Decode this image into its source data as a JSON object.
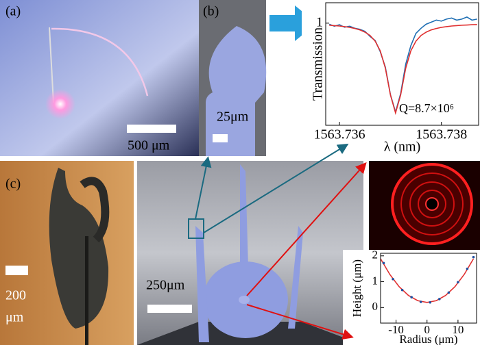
{
  "panels": {
    "a": {
      "label": "(a)",
      "scale_bar": "500 μm"
    },
    "b": {
      "label": "(b)",
      "scale_bar": "25μm"
    },
    "c": {
      "label": "(c)",
      "scale_bar_line1": "200",
      "scale_bar_line2": "μm"
    },
    "center": {
      "scale_bar": "250μm"
    }
  },
  "chart_data": [
    {
      "type": "line",
      "xlabel": "λ (nm)",
      "ylabel": "Transmission",
      "annotation": "Q=8.7×10⁶",
      "xlim": [
        1563.73573,
        1563.73873
      ],
      "xticks": [
        1563.736,
        1563.738
      ],
      "ylim": [
        0,
        1.2
      ],
      "yticks": [
        1
      ],
      "series": [
        {
          "color": "#1f6fb4",
          "x": [
            1563.7358,
            1563.7359,
            1563.736,
            1563.7361,
            1563.7362,
            1563.7363,
            1563.7364,
            1563.7365,
            1563.7366,
            1563.7367,
            1563.7368,
            1563.7369,
            1563.737,
            1563.7371,
            1563.7372,
            1563.7373,
            1563.7374,
            1563.7375,
            1563.7376,
            1563.7377,
            1563.7378,
            1563.7379,
            1563.738,
            1563.7381,
            1563.7382,
            1563.7383,
            1563.7384,
            1563.7385,
            1563.7386,
            1563.7387
          ],
          "values": [
            0.99,
            0.97,
            0.985,
            0.96,
            0.97,
            0.95,
            0.94,
            0.92,
            0.87,
            0.83,
            0.72,
            0.57,
            0.3,
            0.13,
            0.31,
            0.6,
            0.78,
            0.9,
            0.95,
            0.99,
            1.01,
            1.03,
            1.02,
            1.04,
            1.05,
            1.03,
            1.04,
            1.06,
            1.03,
            1.04
          ]
        },
        {
          "color": "#e03030",
          "x": [
            1563.7358,
            1563.7359,
            1563.736,
            1563.7361,
            1563.7362,
            1563.7363,
            1563.7364,
            1563.7365,
            1563.7366,
            1563.7367,
            1563.7368,
            1563.7369,
            1563.737,
            1563.7371,
            1563.7372,
            1563.7373,
            1563.7374,
            1563.7375,
            1563.7376,
            1563.7377,
            1563.7378,
            1563.7379,
            1563.738,
            1563.7381,
            1563.7382,
            1563.7383,
            1563.7384,
            1563.7385,
            1563.7386,
            1563.7387
          ],
          "values": [
            0.98,
            0.976,
            0.972,
            0.966,
            0.959,
            0.948,
            0.934,
            0.912,
            0.879,
            0.824,
            0.729,
            0.56,
            0.296,
            0.12,
            0.296,
            0.56,
            0.729,
            0.824,
            0.879,
            0.912,
            0.934,
            0.948,
            0.959,
            0.966,
            0.972,
            0.976,
            0.98,
            0.982,
            0.985,
            0.986
          ]
        }
      ]
    },
    {
      "type": "line",
      "xlabel": "Radius (μm)",
      "ylabel": "Height (μm)",
      "xlim": [
        -15,
        16
      ],
      "xticks": [
        -10,
        0,
        10
      ],
      "ylim": [
        -0.6,
        2.1
      ],
      "yticks": [
        0,
        1,
        2
      ],
      "series": [
        {
          "color": "#e03030",
          "x": [
            -15,
            -12,
            -9,
            -6,
            -3,
            0,
            3,
            6,
            9,
            12,
            15
          ],
          "values": [
            1.8875,
            1.28,
            0.8075,
            0.47,
            0.2675,
            0.2,
            0.2675,
            0.47,
            0.8075,
            1.28,
            1.8875
          ]
        },
        {
          "color": "#2050a0",
          "mode": "markers",
          "x": [
            -14,
            -11,
            -8,
            -5,
            -2,
            1,
            4,
            7,
            10,
            13,
            15
          ],
          "values": [
            1.72,
            1.1,
            0.68,
            0.4,
            0.22,
            0.2,
            0.33,
            0.58,
            0.98,
            1.5,
            1.95
          ]
        }
      ]
    }
  ]
}
